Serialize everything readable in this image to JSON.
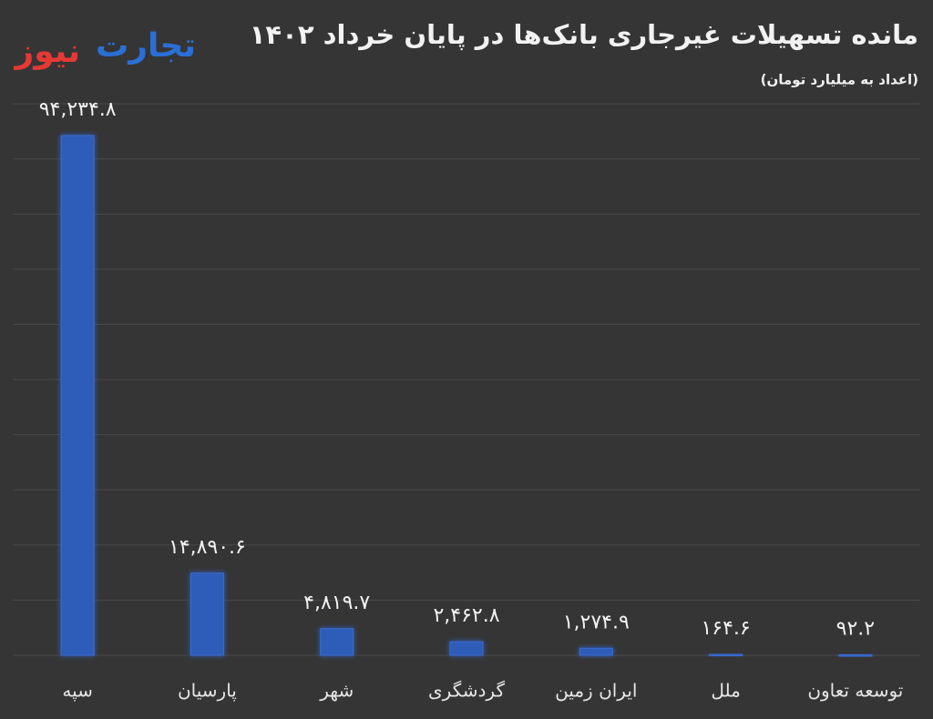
{
  "logo": {
    "first": "تجارت",
    "second": "نیوز"
  },
  "chart_data": {
    "type": "bar",
    "title": "مانده تسهیلات غیرجاری بانک‌ها در پایان خرداد ۱۴۰۲",
    "subtitle": "(اعداد به میلیارد تومان)",
    "categories": [
      "سپه",
      "پارسیان",
      "شهر",
      "گردشگری",
      "ایران زمین",
      "ملل",
      "توسعه تعاون"
    ],
    "values": [
      94234.8,
      14890.6,
      4819.7,
      2462.8,
      1274.9,
      164.6,
      92.2
    ],
    "value_labels": [
      "۹۴,۲۳۴.۸",
      "۱۴,۸۹۰.۶",
      "۴,۸۱۹.۷",
      "۲,۴۶۲.۸",
      "۱,۲۷۴.۹",
      "۱۶۴.۶",
      "۹۲.۲"
    ],
    "color": "#2d5bb9",
    "ylim": [
      0,
      100000
    ],
    "yticks": [
      0,
      10000,
      20000,
      30000,
      40000,
      50000,
      60000,
      70000,
      80000,
      90000,
      100000
    ],
    "grid": true
  }
}
